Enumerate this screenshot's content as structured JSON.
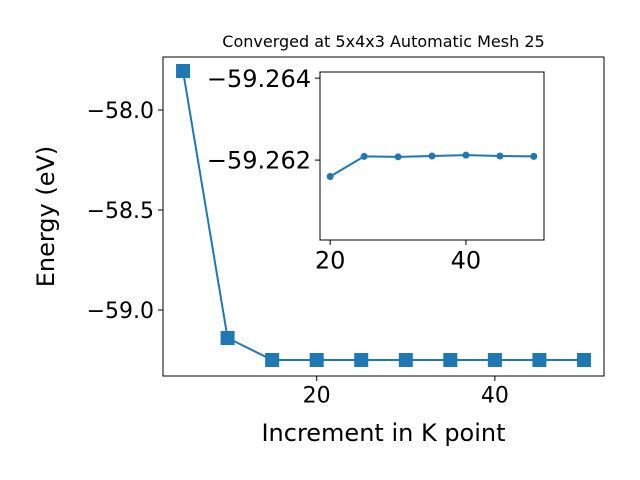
{
  "chart_data": [
    {
      "type": "line",
      "title": "Converged at 5x4x3 Automatic Mesh 25",
      "x_label": "Increment in K point",
      "y_label": "Energy (eV)",
      "x": [
        5,
        10,
        15,
        20,
        25,
        30,
        35,
        40,
        45,
        50
      ],
      "series": [
        {
          "color": "#1f77b4",
          "marker": "square",
          "values": [
            -57.805,
            -59.14,
            -59.25,
            -59.25,
            -59.25,
            -59.25,
            -59.25,
            -59.25,
            -59.25,
            -59.25
          ]
        }
      ],
      "xlim": [
        2.75,
        52.25
      ],
      "ylim": [
        -59.33,
        -57.735
      ],
      "xticks": [
        20,
        40
      ],
      "yticks": [
        {
          "value": -58.0,
          "label": "−58.0"
        },
        {
          "value": -58.5,
          "label": "−58.5"
        },
        {
          "value": -59.0,
          "label": "−59.0"
        }
      ]
    },
    {
      "type": "line",
      "x": [
        20,
        25,
        30,
        35,
        40,
        45,
        50
      ],
      "series": [
        {
          "color": "#1f77b4",
          "marker": "circle",
          "values": [
            -59.2616,
            -59.26209,
            -59.26208,
            -59.2621,
            -59.26212,
            -59.2621,
            -59.26209
          ]
        }
      ],
      "xlim": [
        18.5,
        51.5
      ],
      "ylim": [
        -59.26005,
        -59.26415
      ],
      "xticks": [
        20,
        40
      ],
      "yticks": [
        {
          "value": -59.264,
          "label": "−59.264"
        },
        {
          "value": -59.262,
          "label": "−59.262"
        }
      ]
    }
  ]
}
